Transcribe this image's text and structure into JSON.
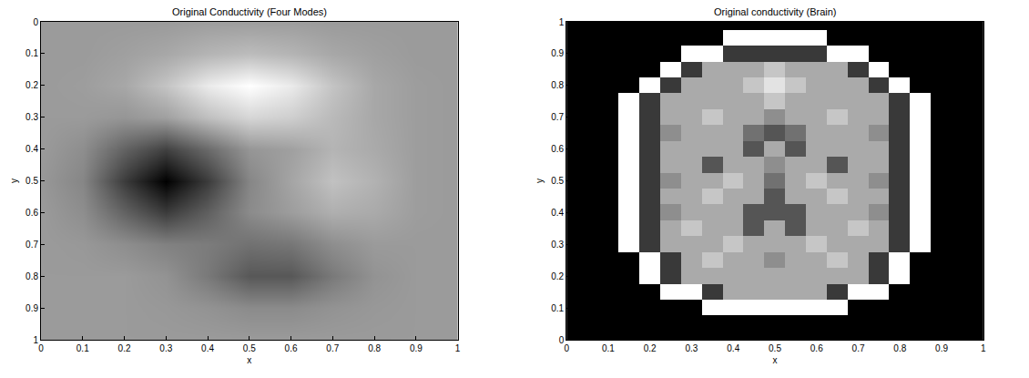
{
  "chart_data": [
    {
      "type": "heatmap",
      "title": "Original Conductivity (Four Modes)",
      "x_label": "x",
      "y_label": "y",
      "xlim": [
        0,
        1
      ],
      "ylim": [
        1,
        0
      ],
      "xticks": [
        0,
        0.1,
        0.2,
        0.3,
        0.4,
        0.5,
        0.6,
        0.7,
        0.8,
        0.9,
        1
      ],
      "yticks": [
        0,
        0.1,
        0.2,
        0.3,
        0.4,
        0.5,
        0.6,
        0.7,
        0.8,
        0.9,
        1
      ],
      "x": [
        0,
        0.1,
        0.2,
        0.3,
        0.4,
        0.5,
        0.6,
        0.7,
        0.8,
        0.9,
        1
      ],
      "y": [
        0,
        0.1,
        0.2,
        0.3,
        0.4,
        0.5,
        0.6,
        0.7,
        0.8,
        0.9,
        1
      ],
      "z": [
        [
          0.6,
          0.6,
          0.6,
          0.6,
          0.61,
          0.61,
          0.61,
          0.6,
          0.6,
          0.6,
          0.6
        ],
        [
          0.6,
          0.6,
          0.62,
          0.65,
          0.7,
          0.73,
          0.7,
          0.65,
          0.62,
          0.6,
          0.6
        ],
        [
          0.6,
          0.61,
          0.65,
          0.76,
          0.91,
          0.99,
          0.91,
          0.76,
          0.65,
          0.61,
          0.6
        ],
        [
          0.6,
          0.6,
          0.58,
          0.62,
          0.74,
          0.83,
          0.8,
          0.72,
          0.65,
          0.61,
          0.6
        ],
        [
          0.6,
          0.55,
          0.38,
          0.25,
          0.41,
          0.58,
          0.62,
          0.7,
          0.66,
          0.61,
          0.6
        ],
        [
          0.59,
          0.52,
          0.23,
          0,
          0.23,
          0.52,
          0.64,
          0.75,
          0.69,
          0.61,
          0.6
        ],
        [
          0.6,
          0.55,
          0.38,
          0.23,
          0.37,
          0.54,
          0.61,
          0.68,
          0.66,
          0.61,
          0.6
        ],
        [
          0.6,
          0.59,
          0.55,
          0.5,
          0.48,
          0.44,
          0.46,
          0.55,
          0.6,
          0.6,
          0.6
        ],
        [
          0.6,
          0.6,
          0.6,
          0.57,
          0.47,
          0.34,
          0.34,
          0.47,
          0.57,
          0.6,
          0.6
        ],
        [
          0.6,
          0.6,
          0.6,
          0.59,
          0.57,
          0.54,
          0.54,
          0.57,
          0.59,
          0.6,
          0.6
        ],
        [
          0.6,
          0.6,
          0.6,
          0.6,
          0.6,
          0.6,
          0.6,
          0.6,
          0.6,
          0.6,
          0.6
        ]
      ]
    },
    {
      "type": "heatmap",
      "title": "Original conductivity (Brain)",
      "x_label": "x",
      "y_label": "y",
      "xlim": [
        0,
        1
      ],
      "ylim": [
        0,
        1
      ],
      "xticks": [
        0,
        0.1,
        0.2,
        0.3,
        0.4,
        0.5,
        0.6,
        0.7,
        0.8,
        0.9,
        1
      ],
      "yticks": [
        0,
        0.1,
        0.2,
        0.3,
        0.4,
        0.5,
        0.6,
        0.7,
        0.8,
        0.9,
        1
      ],
      "x": [
        0,
        0.05,
        0.1,
        0.15,
        0.2,
        0.25,
        0.3,
        0.35,
        0.4,
        0.45,
        0.5,
        0.55,
        0.6,
        0.65,
        0.7,
        0.75,
        0.8,
        0.85,
        0.9,
        0.95,
        1
      ],
      "y": [
        0,
        0.05,
        0.1,
        0.15,
        0.2,
        0.25,
        0.3,
        0.35,
        0.4,
        0.45,
        0.5,
        0.55,
        0.6,
        0.65,
        0.7,
        0.75,
        0.8,
        0.85,
        0.9,
        0.95,
        1
      ],
      "z": [
        [
          0,
          0,
          0,
          0,
          0,
          0,
          0,
          0,
          0,
          0,
          0,
          0,
          0,
          0,
          0,
          0,
          0,
          0,
          0,
          0,
          0
        ],
        [
          0,
          0,
          0,
          0,
          0,
          0,
          0,
          0,
          0,
          0,
          0,
          0,
          0,
          0,
          0,
          0,
          0,
          0,
          0,
          0,
          0
        ],
        [
          0,
          0,
          0,
          0,
          0,
          0,
          0,
          9,
          9,
          9,
          9,
          9,
          9,
          9,
          0,
          0,
          0,
          0,
          0,
          0,
          0
        ],
        [
          0,
          0,
          0,
          0,
          0,
          9,
          9,
          2,
          6,
          6,
          6,
          6,
          6,
          2,
          9,
          9,
          0,
          0,
          0,
          0,
          0
        ],
        [
          0,
          0,
          0,
          0,
          9,
          2,
          6,
          6,
          6,
          6,
          6,
          6,
          6,
          6,
          6,
          2,
          9,
          0,
          0,
          0,
          0
        ],
        [
          0,
          0,
          0,
          0,
          9,
          2,
          6,
          7,
          6,
          6,
          5,
          6,
          6,
          7,
          6,
          2,
          9,
          0,
          0,
          0,
          0
        ],
        [
          0,
          0,
          0,
          9,
          2,
          6,
          6,
          6,
          7,
          6,
          6,
          6,
          7,
          6,
          6,
          6,
          2,
          9,
          0,
          0,
          0
        ],
        [
          0,
          0,
          0,
          9,
          2,
          6,
          7,
          6,
          6,
          3,
          6,
          3,
          6,
          6,
          7,
          6,
          2,
          9,
          0,
          0,
          0
        ],
        [
          0,
          0,
          0,
          9,
          2,
          5,
          6,
          6,
          6,
          3,
          3,
          3,
          6,
          6,
          6,
          5,
          2,
          9,
          0,
          0,
          0
        ],
        [
          0,
          0,
          0,
          9,
          2,
          6,
          6,
          7,
          6,
          6,
          3,
          6,
          6,
          7,
          6,
          6,
          2,
          9,
          0,
          0,
          0
        ],
        [
          0,
          0,
          0,
          9,
          2,
          5,
          6,
          6,
          7,
          6,
          4,
          6,
          7,
          6,
          6,
          5,
          2,
          9,
          0,
          0,
          0
        ],
        [
          0,
          0,
          0,
          9,
          2,
          6,
          6,
          3,
          6,
          6,
          5,
          6,
          6,
          3,
          6,
          6,
          2,
          9,
          0,
          0,
          0
        ],
        [
          0,
          0,
          0,
          9,
          2,
          6,
          6,
          6,
          6,
          3,
          6,
          3,
          6,
          6,
          6,
          6,
          2,
          9,
          0,
          0,
          0
        ],
        [
          0,
          0,
          0,
          9,
          2,
          5,
          6,
          6,
          6,
          4,
          3,
          4,
          6,
          6,
          6,
          5,
          2,
          9,
          0,
          0,
          0
        ],
        [
          0,
          0,
          0,
          9,
          2,
          6,
          6,
          7,
          6,
          6,
          5,
          6,
          6,
          7,
          6,
          6,
          2,
          9,
          0,
          0,
          0
        ],
        [
          0,
          0,
          0,
          9,
          2,
          6,
          6,
          6,
          6,
          6,
          7,
          6,
          6,
          6,
          6,
          6,
          2,
          9,
          0,
          0,
          0
        ],
        [
          0,
          0,
          0,
          0,
          9,
          2,
          6,
          6,
          6,
          7,
          8,
          7,
          6,
          6,
          6,
          2,
          9,
          0,
          0,
          0,
          0
        ],
        [
          0,
          0,
          0,
          0,
          0,
          9,
          2,
          6,
          6,
          6,
          7,
          6,
          6,
          6,
          2,
          9,
          0,
          0,
          0,
          0,
          0
        ],
        [
          0,
          0,
          0,
          0,
          0,
          0,
          9,
          9,
          2,
          2,
          2,
          2,
          2,
          9,
          9,
          0,
          0,
          0,
          0,
          0,
          0
        ],
        [
          0,
          0,
          0,
          0,
          0,
          0,
          0,
          0,
          9,
          9,
          9,
          9,
          9,
          0,
          0,
          0,
          0,
          0,
          0,
          0,
          0
        ],
        [
          0,
          0,
          0,
          0,
          0,
          0,
          0,
          0,
          0,
          0,
          0,
          0,
          0,
          0,
          0,
          0,
          0,
          0,
          0,
          0,
          0
        ]
      ]
    }
  ]
}
